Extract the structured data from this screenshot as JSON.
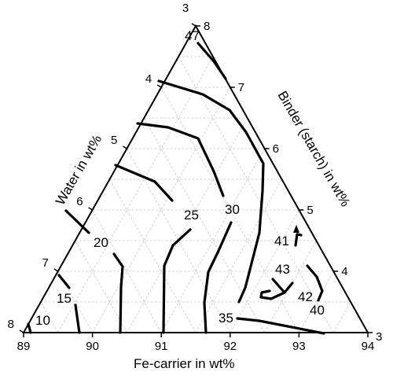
{
  "chart_data": {
    "type": "ternary-contour",
    "axes": {
      "bottom": {
        "label": "Fe-carrier in wt%",
        "ticks": [
          "89",
          "90",
          "91",
          "92",
          "93",
          "94"
        ]
      },
      "left": {
        "label": "Water in wt%",
        "ticks": [
          "3",
          "4",
          "5",
          "6",
          "7",
          "8"
        ]
      },
      "right": {
        "label": "Binder (starch) in wt%",
        "ticks": [
          "3",
          "4",
          "5",
          "6",
          "7",
          "8"
        ]
      }
    },
    "ranges": {
      "fe_carrier": [
        89,
        94
      ],
      "water": [
        3,
        8
      ],
      "binder": [
        3,
        8
      ]
    },
    "grid": true,
    "contour_labels": [
      "10",
      "15",
      "20",
      "25",
      "30",
      "35",
      "40",
      "41",
      "42",
      "43",
      "47"
    ]
  }
}
